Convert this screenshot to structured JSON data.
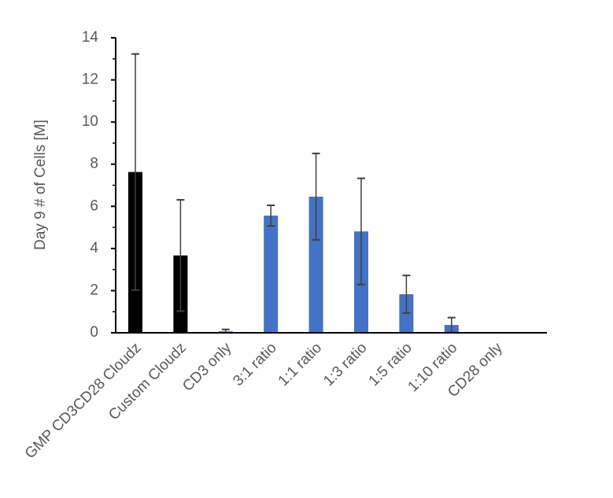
{
  "chart_data": {
    "type": "bar",
    "title": "",
    "xlabel": "",
    "ylabel": "Day 9  # of Cells [M]",
    "ylim": [
      0,
      14
    ],
    "yticks": [
      "0",
      "2",
      "4",
      "6",
      "8",
      "10",
      "12",
      "14"
    ],
    "grid": false,
    "legend": "none",
    "categories": [
      "GMP CD3CD28 Cloudz",
      "Custom Cloudz",
      "CD3 only",
      "3:1 ratio",
      "1:1 ratio",
      "1:3 ratio",
      "1:5 ratio",
      "1:10 ratio",
      "CD28 only"
    ],
    "values": [
      7.63,
      3.67,
      0.07,
      5.56,
      6.46,
      4.81,
      1.83,
      0.37,
      0
    ],
    "errors": [
      5.6,
      2.64,
      0.09,
      0.49,
      2.05,
      2.52,
      0.89,
      0.35,
      0
    ],
    "colors": [
      "#000000",
      "#000000",
      "#4472C4",
      "#4472C4",
      "#4472C4",
      "#4472C4",
      "#4472C4",
      "#4472C4",
      "#4472C4"
    ],
    "error_bar_color": "#404040"
  }
}
